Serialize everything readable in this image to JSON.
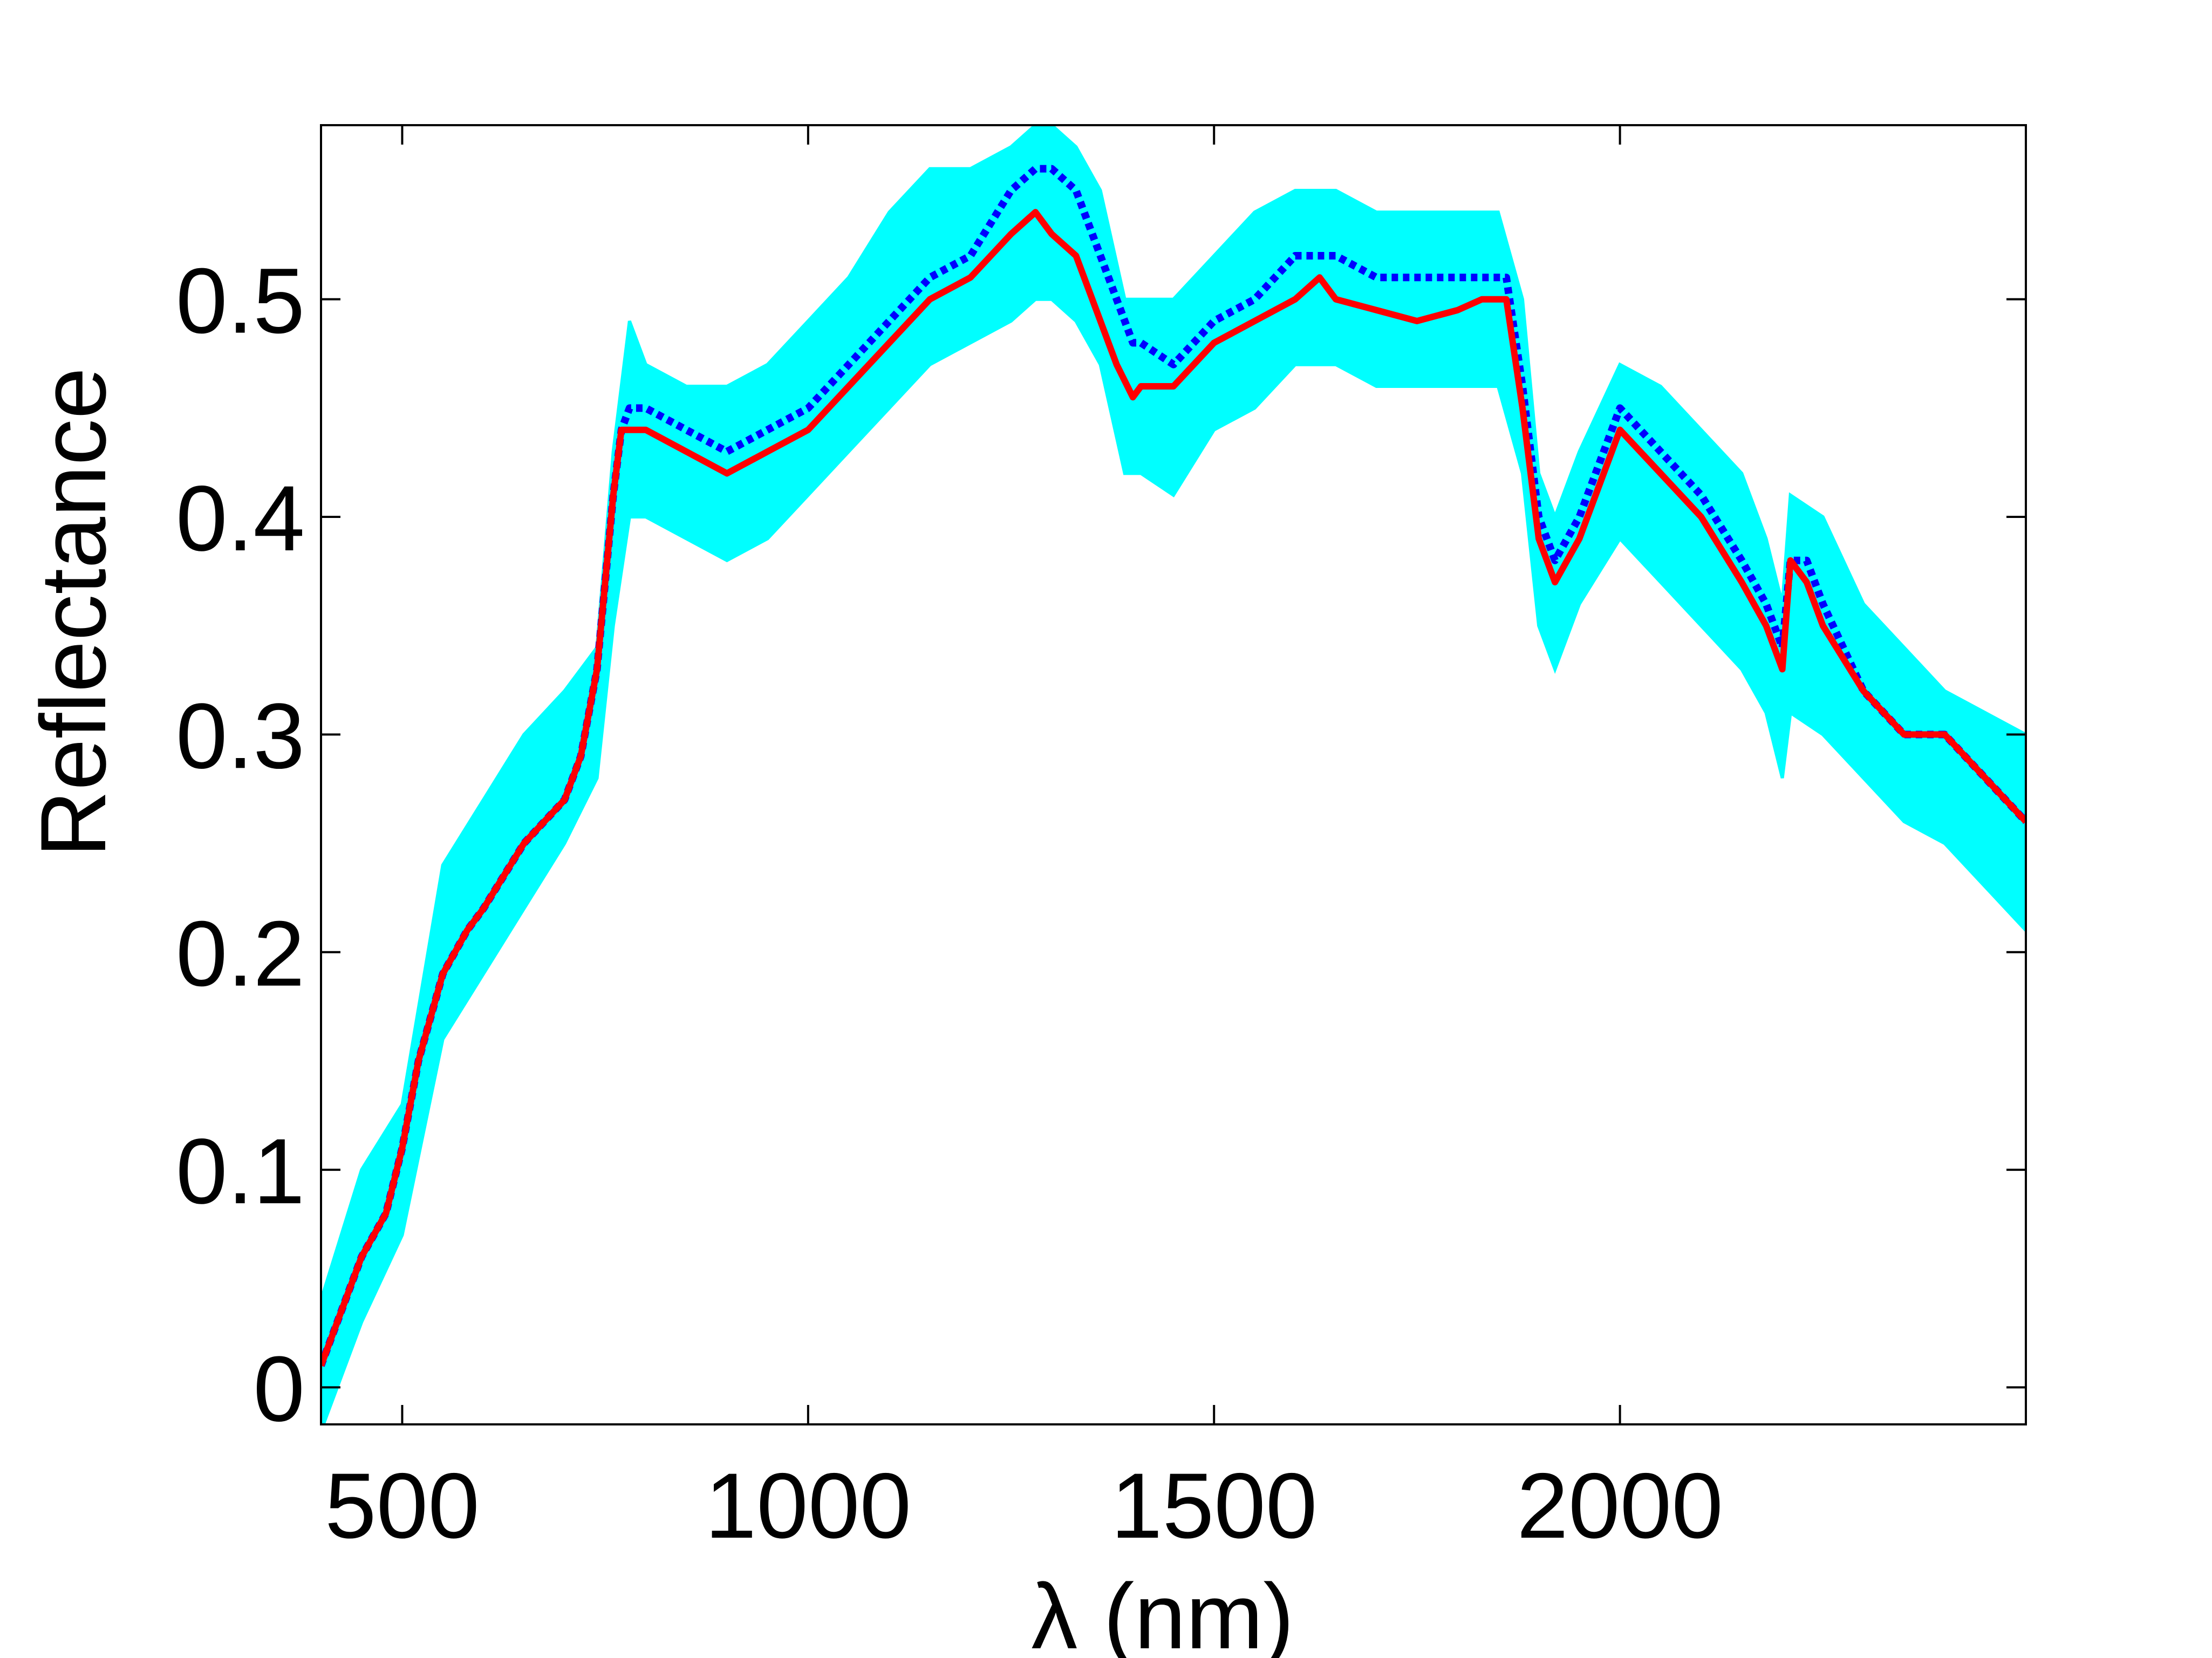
{
  "chart_data": {
    "type": "line",
    "title": "",
    "xlabel": "λ (nm)",
    "ylabel": "Reflectance",
    "xlim": [
      400,
      2500
    ],
    "ylim": [
      -0.017,
      0.58
    ],
    "xticks": [
      500,
      1000,
      1500,
      2000
    ],
    "xtick_labels": [
      "500",
      "1000",
      "1500",
      "2000"
    ],
    "yticks": [
      0,
      0.1,
      0.2,
      0.3,
      0.4,
      0.5
    ],
    "ytick_labels": [
      "0",
      "0.1",
      "0.2",
      "0.3",
      "0.4",
      "0.5"
    ],
    "grid": false,
    "legend": "none",
    "colors": {
      "band": "#00ffff",
      "dotted": "#0000ff",
      "solid": "#ff0000"
    },
    "series": [
      {
        "style": "cyan band (spread of many spectra)",
        "x": [
          400,
          450,
          500,
          550,
          600,
          650,
          700,
          740,
          760,
          780,
          800,
          850,
          900,
          950,
          1000,
          1050,
          1100,
          1150,
          1200,
          1250,
          1280,
          1300,
          1330,
          1360,
          1390,
          1410,
          1450,
          1500,
          1550,
          1600,
          1650,
          1700,
          1750,
          1800,
          1850,
          1880,
          1900,
          1920,
          1950,
          2000,
          2050,
          2100,
          2150,
          2180,
          2200,
          2210,
          2250,
          2300,
          2350,
          2400,
          2450,
          2500
        ],
        "y_low": [
          -0.02,
          0.03,
          0.07,
          0.16,
          0.19,
          0.22,
          0.25,
          0.28,
          0.35,
          0.4,
          0.4,
          0.39,
          0.38,
          0.39,
          0.41,
          0.43,
          0.45,
          0.47,
          0.48,
          0.49,
          0.5,
          0.5,
          0.49,
          0.47,
          0.42,
          0.42,
          0.41,
          0.44,
          0.45,
          0.47,
          0.47,
          0.46,
          0.46,
          0.46,
          0.46,
          0.42,
          0.35,
          0.33,
          0.36,
          0.39,
          0.37,
          0.35,
          0.33,
          0.31,
          0.28,
          0.31,
          0.3,
          0.28,
          0.26,
          0.25,
          0.23,
          0.21
        ],
        "y_high": [
          0.04,
          0.1,
          0.13,
          0.24,
          0.27,
          0.3,
          0.32,
          0.34,
          0.43,
          0.49,
          0.47,
          0.46,
          0.46,
          0.47,
          0.49,
          0.51,
          0.54,
          0.56,
          0.56,
          0.57,
          0.58,
          0.58,
          0.57,
          0.55,
          0.5,
          0.5,
          0.5,
          0.52,
          0.54,
          0.55,
          0.55,
          0.54,
          0.54,
          0.54,
          0.54,
          0.5,
          0.42,
          0.4,
          0.43,
          0.47,
          0.46,
          0.44,
          0.42,
          0.39,
          0.36,
          0.41,
          0.4,
          0.36,
          0.34,
          0.32,
          0.31,
          0.3
        ]
      },
      {
        "style": "blue dotted",
        "x": [
          400,
          420,
          450,
          480,
          500,
          520,
          550,
          580,
          600,
          650,
          700,
          720,
          740,
          750,
          760,
          770,
          780,
          800,
          850,
          900,
          950,
          1000,
          1050,
          1100,
          1150,
          1200,
          1250,
          1280,
          1300,
          1330,
          1360,
          1380,
          1400,
          1410,
          1450,
          1500,
          1550,
          1600,
          1630,
          1650,
          1700,
          1750,
          1800,
          1830,
          1860,
          1880,
          1900,
          1920,
          1950,
          2000,
          2050,
          2100,
          2150,
          2180,
          2200,
          2210,
          2230,
          2250,
          2300,
          2350,
          2400,
          2450,
          2500
        ],
        "y": [
          0.01,
          0.03,
          0.06,
          0.08,
          0.11,
          0.15,
          0.19,
          0.21,
          0.22,
          0.25,
          0.27,
          0.29,
          0.33,
          0.37,
          0.41,
          0.44,
          0.45,
          0.45,
          0.44,
          0.43,
          0.44,
          0.45,
          0.47,
          0.49,
          0.51,
          0.52,
          0.55,
          0.56,
          0.56,
          0.55,
          0.52,
          0.5,
          0.48,
          0.48,
          0.47,
          0.49,
          0.5,
          0.52,
          0.52,
          0.52,
          0.51,
          0.51,
          0.51,
          0.51,
          0.51,
          0.46,
          0.4,
          0.38,
          0.4,
          0.45,
          0.43,
          0.41,
          0.38,
          0.36,
          0.34,
          0.38,
          0.38,
          0.36,
          0.32,
          0.3,
          0.3,
          0.28,
          0.26
        ]
      },
      {
        "style": "red solid",
        "x": [
          400,
          420,
          450,
          480,
          500,
          520,
          550,
          580,
          600,
          650,
          700,
          720,
          740,
          750,
          760,
          770,
          780,
          800,
          850,
          900,
          950,
          1000,
          1050,
          1100,
          1150,
          1200,
          1250,
          1280,
          1300,
          1330,
          1360,
          1380,
          1400,
          1410,
          1450,
          1500,
          1550,
          1600,
          1630,
          1650,
          1700,
          1750,
          1800,
          1830,
          1860,
          1880,
          1900,
          1920,
          1950,
          2000,
          2050,
          2100,
          2150,
          2180,
          2200,
          2210,
          2230,
          2250,
          2300,
          2350,
          2400,
          2450,
          2500
        ],
        "y": [
          0.01,
          0.03,
          0.06,
          0.08,
          0.11,
          0.15,
          0.19,
          0.21,
          0.22,
          0.25,
          0.27,
          0.29,
          0.33,
          0.37,
          0.41,
          0.44,
          0.44,
          0.44,
          0.43,
          0.42,
          0.43,
          0.44,
          0.46,
          0.48,
          0.5,
          0.51,
          0.53,
          0.54,
          0.53,
          0.52,
          0.49,
          0.47,
          0.455,
          0.46,
          0.46,
          0.48,
          0.49,
          0.5,
          0.51,
          0.5,
          0.495,
          0.49,
          0.495,
          0.5,
          0.5,
          0.45,
          0.39,
          0.37,
          0.39,
          0.44,
          0.42,
          0.4,
          0.37,
          0.35,
          0.33,
          0.38,
          0.37,
          0.35,
          0.32,
          0.3,
          0.3,
          0.28,
          0.26
        ]
      }
    ]
  }
}
